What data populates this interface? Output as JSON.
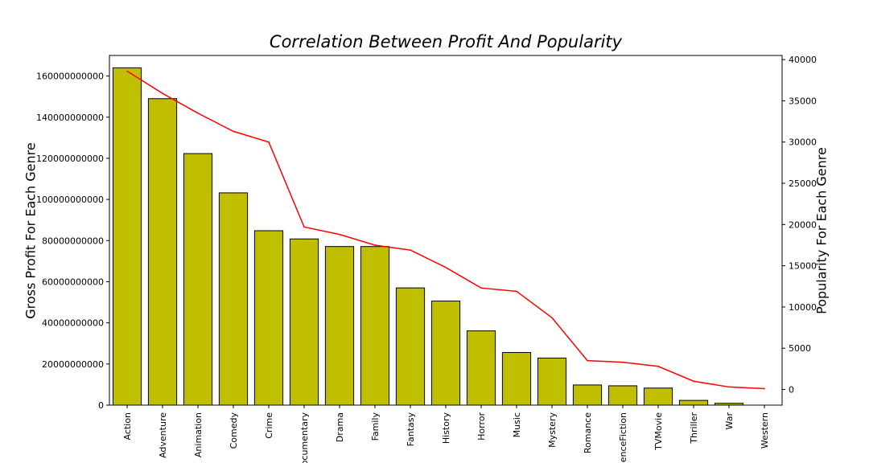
{
  "chart_data": {
    "type": "bar",
    "title": "Correlation Between Profit And Popularity",
    "ylabel_left": "Gross Profit For Each Genre",
    "ylabel_right": "Popularity For Each Genre",
    "categories": [
      "Action",
      "Adventure",
      "Animation",
      "Comedy",
      "Crime",
      "Documentary",
      "Drama",
      "Family",
      "Fantasy",
      "History",
      "Horror",
      "Music",
      "Mystery",
      "Romance",
      "ScienceFiction",
      "TVMovie",
      "Thriller",
      "War",
      "Western"
    ],
    "series": [
      {
        "name": "Gross Profit",
        "type": "bar",
        "axis": "left",
        "color": "#bfbf00",
        "values": [
          164000000000,
          149000000000,
          122300000000,
          103200000000,
          84800000000,
          80800000000,
          77100000000,
          77100000000,
          57000000000,
          50600000000,
          36100000000,
          25600000000,
          22900000000,
          9800000000,
          9400000000,
          8300000000,
          2300000000,
          900000000,
          0
        ]
      },
      {
        "name": "Popularity",
        "type": "line",
        "axis": "right",
        "color": "#ff0000",
        "values": [
          38600,
          35900,
          33500,
          31300,
          30000,
          19700,
          18800,
          17500,
          16900,
          14800,
          12300,
          11900,
          8700,
          3500,
          3300,
          2800,
          1000,
          300,
          100
        ]
      }
    ],
    "y_left": {
      "min": 0,
      "max": 170000000000,
      "ticks": [
        0,
        20000000000,
        40000000000,
        60000000000,
        80000000000,
        100000000000,
        120000000000,
        140000000000,
        160000000000
      ],
      "tick_labels": [
        "0",
        "20000000000",
        "40000000000",
        "60000000000",
        "80000000000",
        "100000000000",
        "120000000000",
        "140000000000",
        "160000000000"
      ]
    },
    "y_right": {
      "min": -1900,
      "max": 40500,
      "ticks": [
        0,
        5000,
        10000,
        15000,
        20000,
        25000,
        30000,
        35000,
        40000
      ],
      "tick_labels": [
        "0",
        "5000",
        "10000",
        "15000",
        "20000",
        "25000",
        "30000",
        "35000",
        "40000"
      ]
    },
    "grid": false,
    "legend": "none"
  }
}
